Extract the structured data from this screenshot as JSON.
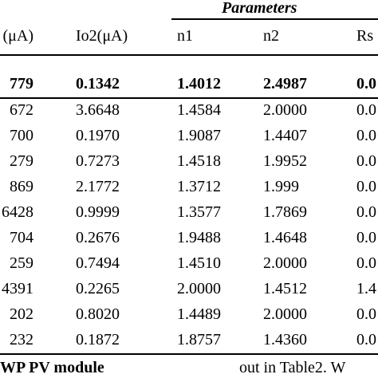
{
  "title": "Parameters",
  "table": {
    "header": [
      "(μA)",
      "Io2(μA)",
      "n1",
      "n2",
      "Rs"
    ],
    "rows": [
      [
        "779",
        "0.1342",
        "1.4012",
        "2.4987",
        "0.0"
      ],
      [
        "672",
        "3.6648",
        "1.4584",
        "2.0000",
        "0.0"
      ],
      [
        "700",
        "0.1970",
        "1.9087",
        "1.4407",
        "0.0"
      ],
      [
        "279",
        "0.7273",
        "1.4518",
        "1.9952",
        "0.0"
      ],
      [
        "869",
        "2.1772",
        "1.3712",
        "1.999",
        "0.0"
      ],
      [
        "6428",
        "0.9999",
        "1.3577",
        "1.7869",
        "0.0"
      ],
      [
        "704",
        "0.2676",
        "1.9488",
        "1.4648",
        "0.0"
      ],
      [
        "259",
        "0.7494",
        "1.4510",
        "2.0000",
        "0.0"
      ],
      [
        "4391",
        "0.2265",
        "2.0000",
        "1.4512",
        "1.4"
      ],
      [
        "202",
        "0.8020",
        "1.4489",
        "2.0000",
        "0.0"
      ],
      [
        "232",
        "0.1872",
        "1.8757",
        "1.4360",
        "0.0"
      ]
    ]
  },
  "caption": [
    "WP PV module",
    "out in Table2. W"
  ]
}
